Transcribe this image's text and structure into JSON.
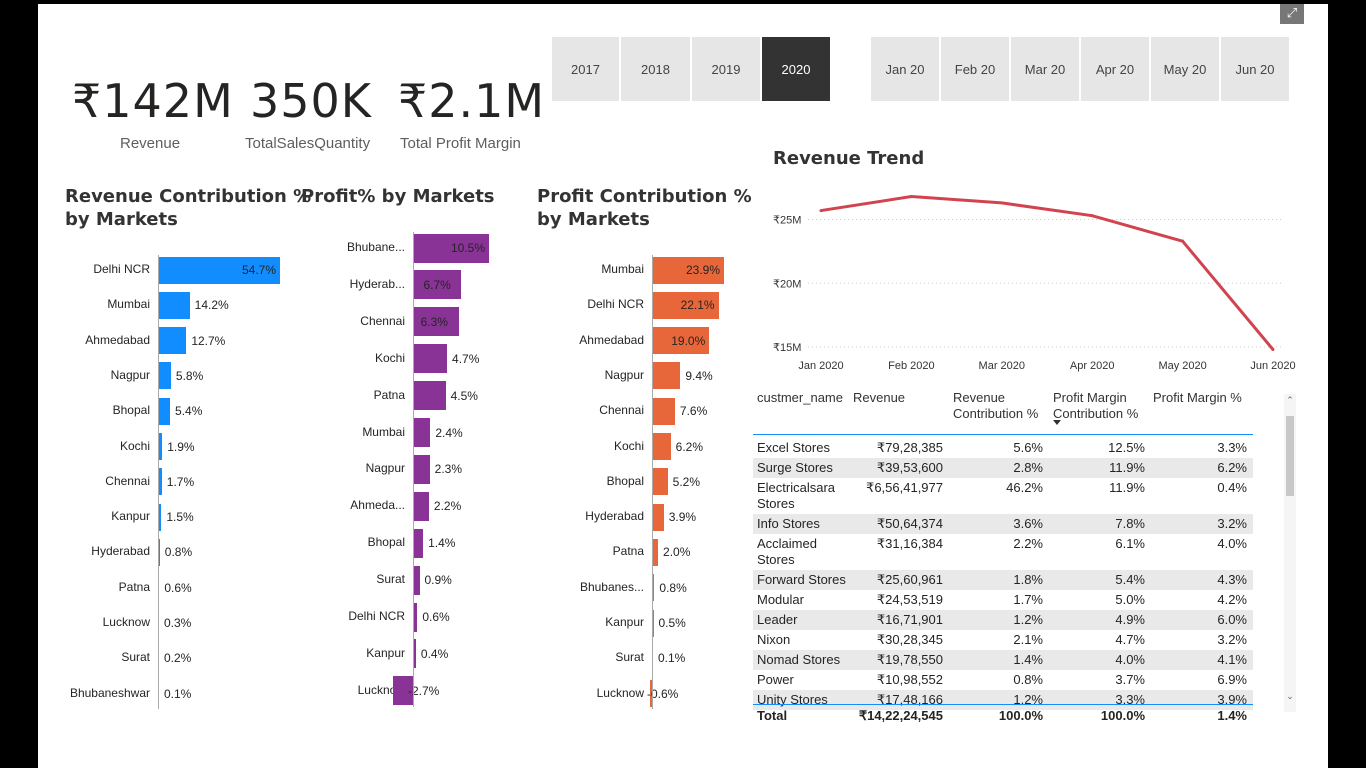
{
  "kpis": [
    {
      "value": "₹142M",
      "label": "Revenue"
    },
    {
      "value": "350K",
      "label": "TotalSalesQuantity"
    },
    {
      "value": "₹2.1M",
      "label": "Total Profit Margin"
    }
  ],
  "year_slicer": {
    "items": [
      "2017",
      "2018",
      "2019",
      "2020"
    ],
    "selected": "2020"
  },
  "month_slicer": {
    "items": [
      "Jan 20",
      "Feb 20",
      "Mar 20",
      "Apr 20",
      "May 20",
      "Jun 20"
    ]
  },
  "colors": {
    "revenue_bar": "#118dff",
    "profit_bar": "#8a3397",
    "profit_contrib_bar": "#e8673a",
    "trend_line": "#d1444f"
  },
  "icons": {
    "focus_mode": "focus-mode-icon"
  },
  "revenue_contribution": {
    "title_line1": "Revenue Contribution %",
    "title_line2": "by Markets",
    "chart_data": {
      "type": "bar",
      "categories": [
        "Delhi NCR",
        "Mumbai",
        "Ahmedabad",
        "Nagpur",
        "Bhopal",
        "Kochi",
        "Chennai",
        "Kanpur",
        "Hyderabad",
        "Patna",
        "Lucknow",
        "Surat",
        "Bhubaneshwar"
      ],
      "values": [
        54.7,
        14.2,
        12.7,
        5.8,
        5.4,
        1.9,
        1.7,
        1.5,
        0.8,
        0.6,
        0.3,
        0.2,
        0.1
      ],
      "labels": [
        "54.7%",
        "14.2%",
        "12.7%",
        "5.8%",
        "5.4%",
        "1.9%",
        "1.7%",
        "1.5%",
        "0.8%",
        "0.6%",
        "0.3%",
        "0.2%",
        "0.1%"
      ]
    }
  },
  "profit_pct": {
    "title": "Profit% by Markets",
    "chart_data": {
      "type": "bar",
      "categories": [
        "Bhubane...",
        "Hyderab...",
        "Chennai",
        "Kochi",
        "Patna",
        "Mumbai",
        "Nagpur",
        "Ahmeda...",
        "Bhopal",
        "Surat",
        "Delhi NCR",
        "Kanpur",
        "Lucknow"
      ],
      "values": [
        10.5,
        6.7,
        6.3,
        4.7,
        4.5,
        2.4,
        2.3,
        2.2,
        1.4,
        0.9,
        0.6,
        0.4,
        -2.7
      ],
      "labels": [
        "10.5%",
        "6.7%",
        "6.3%",
        "4.7%",
        "4.5%",
        "2.4%",
        "2.3%",
        "2.2%",
        "1.4%",
        "0.9%",
        "0.6%",
        "0.4%",
        "-2.7%"
      ]
    }
  },
  "profit_contribution": {
    "title_line1": "Profit Contribution %",
    "title_line2": "by Markets",
    "chart_data": {
      "type": "bar",
      "categories": [
        "Mumbai",
        "Delhi NCR",
        "Ahmedabad",
        "Nagpur",
        "Chennai",
        "Kochi",
        "Bhopal",
        "Hyderabad",
        "Patna",
        "Bhubanes...",
        "Kanpur",
        "Surat",
        "Lucknow"
      ],
      "values": [
        23.9,
        22.1,
        19.0,
        9.4,
        7.6,
        6.2,
        5.2,
        3.9,
        2.0,
        0.8,
        0.5,
        0.1,
        -0.6
      ],
      "labels": [
        "23.9%",
        "22.1%",
        "19.0%",
        "9.4%",
        "7.6%",
        "6.2%",
        "5.2%",
        "3.9%",
        "2.0%",
        "0.8%",
        "0.5%",
        "0.1%",
        "-0.6%"
      ]
    }
  },
  "revenue_trend": {
    "title": "Revenue Trend",
    "chart_data": {
      "type": "line",
      "x": [
        "Jan 2020",
        "Feb 2020",
        "Mar 2020",
        "Apr 2020",
        "May 2020",
        "Jun 2020"
      ],
      "values": [
        25.7,
        26.8,
        26.3,
        25.3,
        23.3,
        14.8
      ],
      "ylim": [
        15,
        27
      ],
      "yticks": [
        15,
        20,
        25
      ],
      "ytick_labels": [
        "₹15M",
        "₹20M",
        "₹25M"
      ]
    }
  },
  "table": {
    "headers": [
      "custmer_name",
      "Revenue",
      "Revenue Contribution %",
      "Profit Margin Contribution %",
      "Profit Margin %"
    ],
    "header_lines": [
      [
        "custmer_name"
      ],
      [
        "Revenue"
      ],
      [
        "Revenue",
        "Contribution %"
      ],
      [
        "Profit Margin",
        "Contribution %"
      ],
      [
        "Profit Margin %"
      ]
    ],
    "rows": [
      {
        "name": [
          "Excel Stores"
        ],
        "revenue": "₹79,28,385",
        "rev_contrib": "5.6%",
        "pm_contrib": "12.5%",
        "pm_pct": "3.3%"
      },
      {
        "name": [
          "Surge Stores"
        ],
        "revenue": "₹39,53,600",
        "rev_contrib": "2.8%",
        "pm_contrib": "11.9%",
        "pm_pct": "6.2%"
      },
      {
        "name": [
          "Electricalsara",
          "Stores"
        ],
        "revenue": "₹6,56,41,977",
        "rev_contrib": "46.2%",
        "pm_contrib": "11.9%",
        "pm_pct": "0.4%"
      },
      {
        "name": [
          "Info Stores"
        ],
        "revenue": "₹50,64,374",
        "rev_contrib": "3.6%",
        "pm_contrib": "7.8%",
        "pm_pct": "3.2%"
      },
      {
        "name": [
          "Acclaimed",
          "Stores"
        ],
        "revenue": "₹31,16,384",
        "rev_contrib": "2.2%",
        "pm_contrib": "6.1%",
        "pm_pct": "4.0%"
      },
      {
        "name": [
          "Forward Stores"
        ],
        "revenue": "₹25,60,961",
        "rev_contrib": "1.8%",
        "pm_contrib": "5.4%",
        "pm_pct": "4.3%"
      },
      {
        "name": [
          "Modular"
        ],
        "revenue": "₹24,53,519",
        "rev_contrib": "1.7%",
        "pm_contrib": "5.0%",
        "pm_pct": "4.2%"
      },
      {
        "name": [
          "Leader"
        ],
        "revenue": "₹16,71,901",
        "rev_contrib": "1.2%",
        "pm_contrib": "4.9%",
        "pm_pct": "6.0%"
      },
      {
        "name": [
          "Nixon"
        ],
        "revenue": "₹30,28,345",
        "rev_contrib": "2.1%",
        "pm_contrib": "4.7%",
        "pm_pct": "3.2%"
      },
      {
        "name": [
          "Nomad Stores"
        ],
        "revenue": "₹19,78,550",
        "rev_contrib": "1.4%",
        "pm_contrib": "4.0%",
        "pm_pct": "4.1%"
      },
      {
        "name": [
          "Power"
        ],
        "revenue": "₹10,98,552",
        "rev_contrib": "0.8%",
        "pm_contrib": "3.7%",
        "pm_pct": "6.9%"
      },
      {
        "name": [
          "Unity Stores"
        ],
        "revenue": "₹17,48,166",
        "rev_contrib": "1.2%",
        "pm_contrib": "3.3%",
        "pm_pct": "3.9%"
      }
    ],
    "total": {
      "name": "Total",
      "revenue": "₹14,22,24,545",
      "rev_contrib": "100.0%",
      "pm_contrib": "100.0%",
      "pm_pct": "1.4%"
    }
  }
}
